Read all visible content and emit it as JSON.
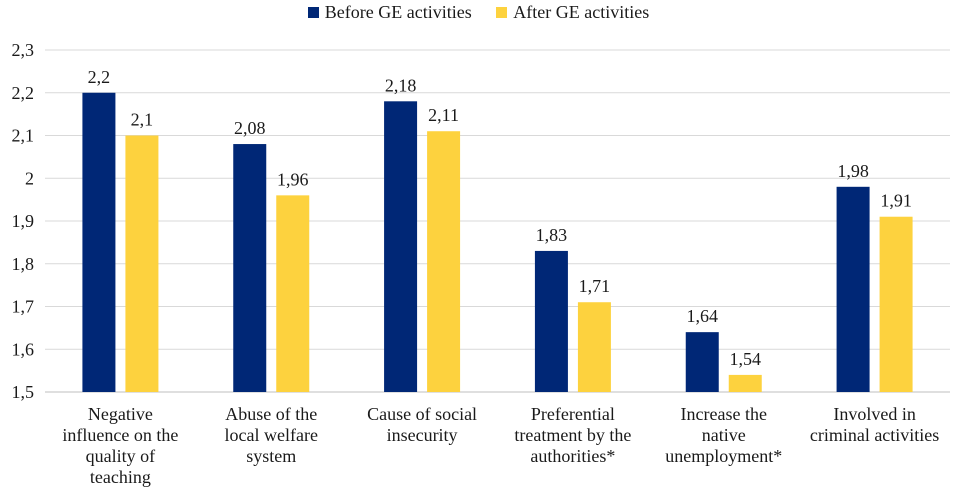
{
  "chart_data": {
    "type": "bar",
    "title": "",
    "xlabel": "",
    "ylabel": "",
    "ylim": [
      1.5,
      2.3
    ],
    "yticks": [
      "1,5",
      "1,6",
      "1,7",
      "1,8",
      "1,9",
      "2",
      "2,1",
      "2,2",
      "2,3"
    ],
    "grid": true,
    "legend_position": "top-center",
    "categories": [
      "Negative influence on the quality of teaching",
      "Abuse of the local welfare system",
      "Cause of social insecurity",
      "Preferential treatment by the authorities*",
      "Increase the native unemployment*",
      "Involved in criminal activities"
    ],
    "category_lines": [
      "Negative\ninfluence on the\nquality of\nteaching",
      "Abuse of the\nlocal welfare\nsystem",
      "Cause of social\ninsecurity",
      "Preferential\ntreatment by the\nauthorities*",
      "Increase the\nnative\nunemployment*",
      "Involved in\ncriminal activities"
    ],
    "series": [
      {
        "name": "Before GE activities",
        "color": "#002776",
        "values": [
          2.2,
          2.08,
          2.18,
          1.83,
          1.64,
          1.98
        ],
        "labels": [
          "2,2",
          "2,08",
          "2,18",
          "1,83",
          "1,64",
          "1,98"
        ]
      },
      {
        "name": "After GE activities",
        "color": "#FDD23E",
        "values": [
          2.1,
          1.96,
          2.11,
          1.71,
          1.54,
          1.91
        ],
        "labels": [
          "2,1",
          "1,96",
          "2,11",
          "1,71",
          "1,54",
          "1,91"
        ]
      }
    ]
  }
}
